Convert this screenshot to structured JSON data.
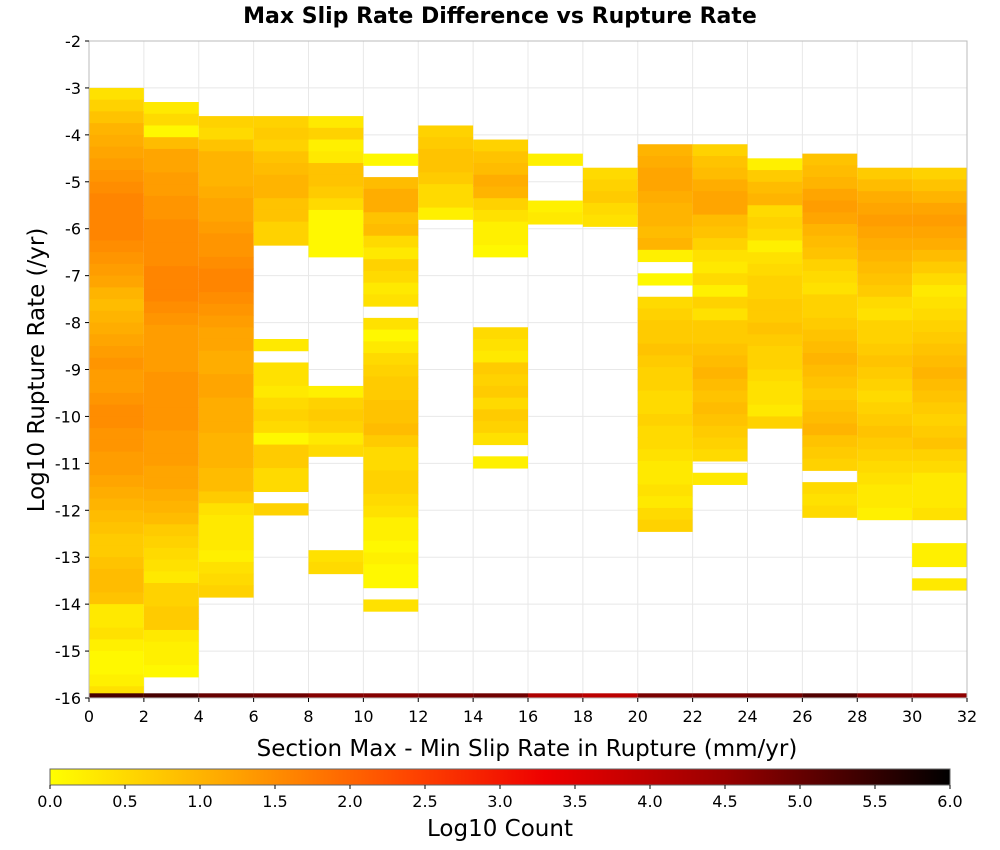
{
  "chart_data": {
    "type": "heatmap",
    "title": "Max Slip Rate Difference vs Rupture Rate",
    "xlabel": "Section Max - Min Slip Rate in Rupture (mm/yr)",
    "ylabel": "Log10 Rupture Rate (/yr)",
    "xlim": [
      0,
      32
    ],
    "ylim": [
      -16,
      -2
    ],
    "x_bin_width": 2,
    "y_bin_height": 0.25,
    "x_ticks": [
      0,
      2,
      4,
      6,
      8,
      10,
      12,
      14,
      16,
      18,
      20,
      22,
      24,
      26,
      28,
      30,
      32
    ],
    "y_ticks": [
      -2,
      -3,
      -4,
      -5,
      -6,
      -7,
      -8,
      -9,
      -10,
      -11,
      -12,
      -13,
      -14,
      -15,
      -16
    ],
    "grid": true,
    "colorbar": {
      "label": "Log10 Count",
      "range": [
        0.0,
        6.0
      ],
      "ticks": [
        "0.0",
        "0.5",
        "1.0",
        "1.5",
        "2.0",
        "2.5",
        "3.0",
        "3.5",
        "4.0",
        "4.5",
        "5.0",
        "5.5",
        "6.0"
      ],
      "colors": [
        "#ffff00",
        "#ffa500",
        "#ff4500",
        "#ee0000",
        "#990000",
        "#000000"
      ]
    },
    "columns": [
      {
        "x": 0,
        "y_top": -3.0,
        "values": [
          0.4,
          0.6,
          0.8,
          1.0,
          1.1,
          1.2,
          1.3,
          1.4,
          1.5,
          1.6,
          1.6,
          1.6,
          1.6,
          1.5,
          1.4,
          1.3,
          1.2,
          1.0,
          0.9,
          1.0,
          1.1,
          1.2,
          1.3,
          1.4,
          1.3,
          1.3,
          1.4,
          1.5,
          1.5,
          1.4,
          1.4,
          1.3,
          1.3,
          1.2,
          1.1,
          1.0,
          0.9,
          0.8,
          0.7,
          0.7,
          0.8,
          0.9,
          0.9,
          0.8,
          0.3,
          0.3,
          0.4,
          0.2,
          0.1,
          0.1,
          0.2,
          0.4
        ]
      },
      {
        "x": 2,
        "y_top": -3.3,
        "values": [
          0.3,
          0.5,
          0.1,
          0.9,
          1.2,
          1.2,
          1.3,
          1.3,
          1.4,
          1.4,
          1.5,
          1.5,
          1.5,
          1.5,
          1.6,
          1.6,
          1.6,
          1.5,
          1.4,
          1.3,
          1.3,
          1.3,
          1.3,
          1.4,
          1.4,
          1.4,
          1.4,
          1.4,
          1.3,
          1.3,
          1.3,
          1.2,
          1.2,
          1.1,
          1.0,
          0.9,
          0.7,
          0.6,
          0.5,
          0.4,
          0.3,
          0.6,
          0.6,
          0.7,
          0.7,
          0.3,
          0.2,
          0.2,
          0.1
        ]
      },
      {
        "x": 4,
        "y_top": -3.6,
        "values": [
          0.6,
          0.5,
          0.8,
          1.0,
          1.0,
          1.0,
          1.1,
          1.2,
          1.2,
          1.3,
          1.4,
          1.4,
          1.5,
          1.6,
          1.6,
          1.5,
          1.4,
          1.3,
          1.2,
          1.2,
          1.1,
          1.1,
          1.2,
          1.2,
          1.1,
          1.1,
          1.1,
          1.0,
          1.0,
          1.0,
          0.9,
          0.9,
          0.7,
          0.4,
          0.3,
          0.3,
          0.3,
          0.2,
          0.4,
          0.5,
          0.6
        ]
      },
      {
        "x": 6,
        "y_top": -3.6,
        "values": [
          0.6,
          0.7,
          0.6,
          0.8,
          0.9,
          1.0,
          1.0,
          0.8,
          0.8,
          0.6,
          0.6,
          null,
          null,
          null,
          null,
          null,
          null,
          null,
          null,
          0.3,
          null,
          0.4,
          0.4,
          0.3,
          0.5,
          0.6,
          0.5,
          0.1,
          0.7,
          0.7,
          0.5,
          0.5,
          null,
          0.6
        ]
      },
      {
        "x": 8,
        "y_top": -3.6,
        "values": [
          0.3,
          0.6,
          0.2,
          0.3,
          0.8,
          0.8,
          0.7,
          0.5,
          0.1,
          0.1,
          0.1,
          0.1,
          null,
          null,
          null,
          null,
          null,
          null,
          null,
          null,
          null,
          null,
          null,
          0.2,
          0.6,
          0.7,
          0.6,
          0.3,
          0.5,
          null,
          null,
          null,
          null,
          null,
          null,
          null,
          null,
          0.4,
          0.5
        ]
      },
      {
        "x": 10,
        "y_top": -4.4,
        "values": [
          0.1,
          null,
          0.9,
          1.1,
          1.1,
          0.8,
          0.9,
          0.5,
          0.3,
          0.6,
          0.5,
          0.3,
          0.4,
          null,
          0.4,
          0.1,
          0.3,
          0.5,
          0.6,
          0.7,
          0.7,
          0.8,
          0.8,
          0.9,
          0.7,
          0.5,
          0.5,
          0.6,
          0.6,
          0.5,
          0.4,
          0.2,
          0.2,
          0.1,
          0.2,
          0.1,
          0.1,
          null,
          0.4
        ]
      },
      {
        "x": 12,
        "y_top": -3.8,
        "values": [
          0.6,
          0.7,
          0.8,
          0.8,
          0.7,
          0.5,
          0.5,
          0.2
        ]
      },
      {
        "x": 14,
        "y_top": -4.1,
        "values": [
          0.6,
          0.8,
          0.9,
          1.1,
          1.0,
          0.6,
          0.4,
          0.2,
          0.2,
          0.1,
          null,
          null,
          null,
          null,
          null,
          null,
          0.5,
          0.4,
          0.3,
          0.7,
          0.6,
          0.7,
          0.5,
          0.7,
          0.6,
          0.4,
          null,
          0.2
        ]
      },
      {
        "x": 16,
        "y_top": -4.4,
        "values": [
          0.2,
          null,
          null,
          null,
          0.2,
          0.3
        ]
      },
      {
        "x": 18,
        "y_top": -4.7,
        "values": [
          0.5,
          0.6,
          0.7,
          0.5,
          0.4
        ]
      },
      {
        "x": 20,
        "y_top": -4.2,
        "values": [
          1.0,
          1.1,
          1.2,
          1.2,
          1.1,
          1.0,
          1.0,
          0.9,
          1.0,
          0.2,
          null,
          0.1,
          null,
          0.5,
          0.6,
          0.7,
          0.7,
          0.8,
          0.7,
          0.6,
          0.6,
          0.5,
          0.5,
          0.6,
          0.5,
          0.5,
          0.4,
          0.3,
          0.3,
          0.4,
          0.3,
          0.5,
          0.6
        ]
      },
      {
        "x": 22,
        "y_top": -4.2,
        "values": [
          0.6,
          0.8,
          0.9,
          1.1,
          1.2,
          1.2,
          0.9,
          0.8,
          0.6,
          0.4,
          0.3,
          0.5,
          0.2,
          0.6,
          0.4,
          0.7,
          0.7,
          0.8,
          0.9,
          1.0,
          0.9,
          0.8,
          0.9,
          0.8,
          0.7,
          0.6,
          0.5,
          null,
          0.3
        ]
      },
      {
        "x": 24,
        "y_top": -4.5,
        "values": [
          0.2,
          0.7,
          0.9,
          1.0,
          0.5,
          0.6,
          0.5,
          0.2,
          0.4,
          0.5,
          0.6,
          0.6,
          0.7,
          0.7,
          0.8,
          0.7,
          0.6,
          0.6,
          0.5,
          0.4,
          0.4,
          0.3,
          0.6
        ]
      },
      {
        "x": 26,
        "y_top": -4.4,
        "values": [
          0.8,
          0.9,
          1.0,
          1.2,
          1.3,
          1.2,
          1.0,
          0.9,
          0.8,
          0.6,
          0.5,
          0.4,
          0.6,
          0.6,
          0.7,
          0.8,
          0.9,
          1.0,
          0.9,
          0.8,
          0.7,
          0.8,
          0.9,
          1.0,
          0.8,
          0.7,
          0.6,
          null,
          0.5,
          0.4,
          0.5
        ]
      },
      {
        "x": 28,
        "y_top": -4.7,
        "values": [
          0.7,
          0.9,
          1.1,
          1.2,
          1.3,
          1.2,
          1.1,
          1.0,
          0.9,
          0.8,
          0.7,
          0.5,
          0.4,
          0.6,
          0.6,
          0.7,
          0.8,
          0.7,
          0.6,
          0.5,
          0.6,
          0.7,
          0.8,
          0.7,
          0.6,
          0.5,
          0.4,
          0.3,
          0.3,
          0.2
        ]
      },
      {
        "x": 30,
        "y_top": -4.7,
        "values": [
          0.6,
          0.8,
          1.0,
          1.2,
          1.3,
          1.2,
          1.1,
          0.9,
          0.7,
          0.5,
          0.3,
          0.4,
          0.5,
          0.6,
          0.7,
          0.8,
          0.9,
          1.0,
          0.9,
          0.8,
          0.7,
          0.6,
          0.7,
          0.8,
          0.6,
          0.5,
          0.3,
          0.3,
          0.3,
          0.4,
          null,
          null,
          0.2,
          0.2,
          null,
          0.3
        ]
      }
    ],
    "bottom_row": {
      "y": -16.0,
      "values_by_x": {
        "0": 5.3,
        "2": 5.3,
        "4": 5.0,
        "6": 4.9,
        "8": 4.7,
        "10": 4.7,
        "12": 4.8,
        "14": 4.9,
        "16": 4.2,
        "18": 4.0,
        "20": 4.8,
        "22": 4.8,
        "24": 4.9,
        "26": 5.2,
        "28": 4.7,
        "30": 4.6
      }
    }
  }
}
